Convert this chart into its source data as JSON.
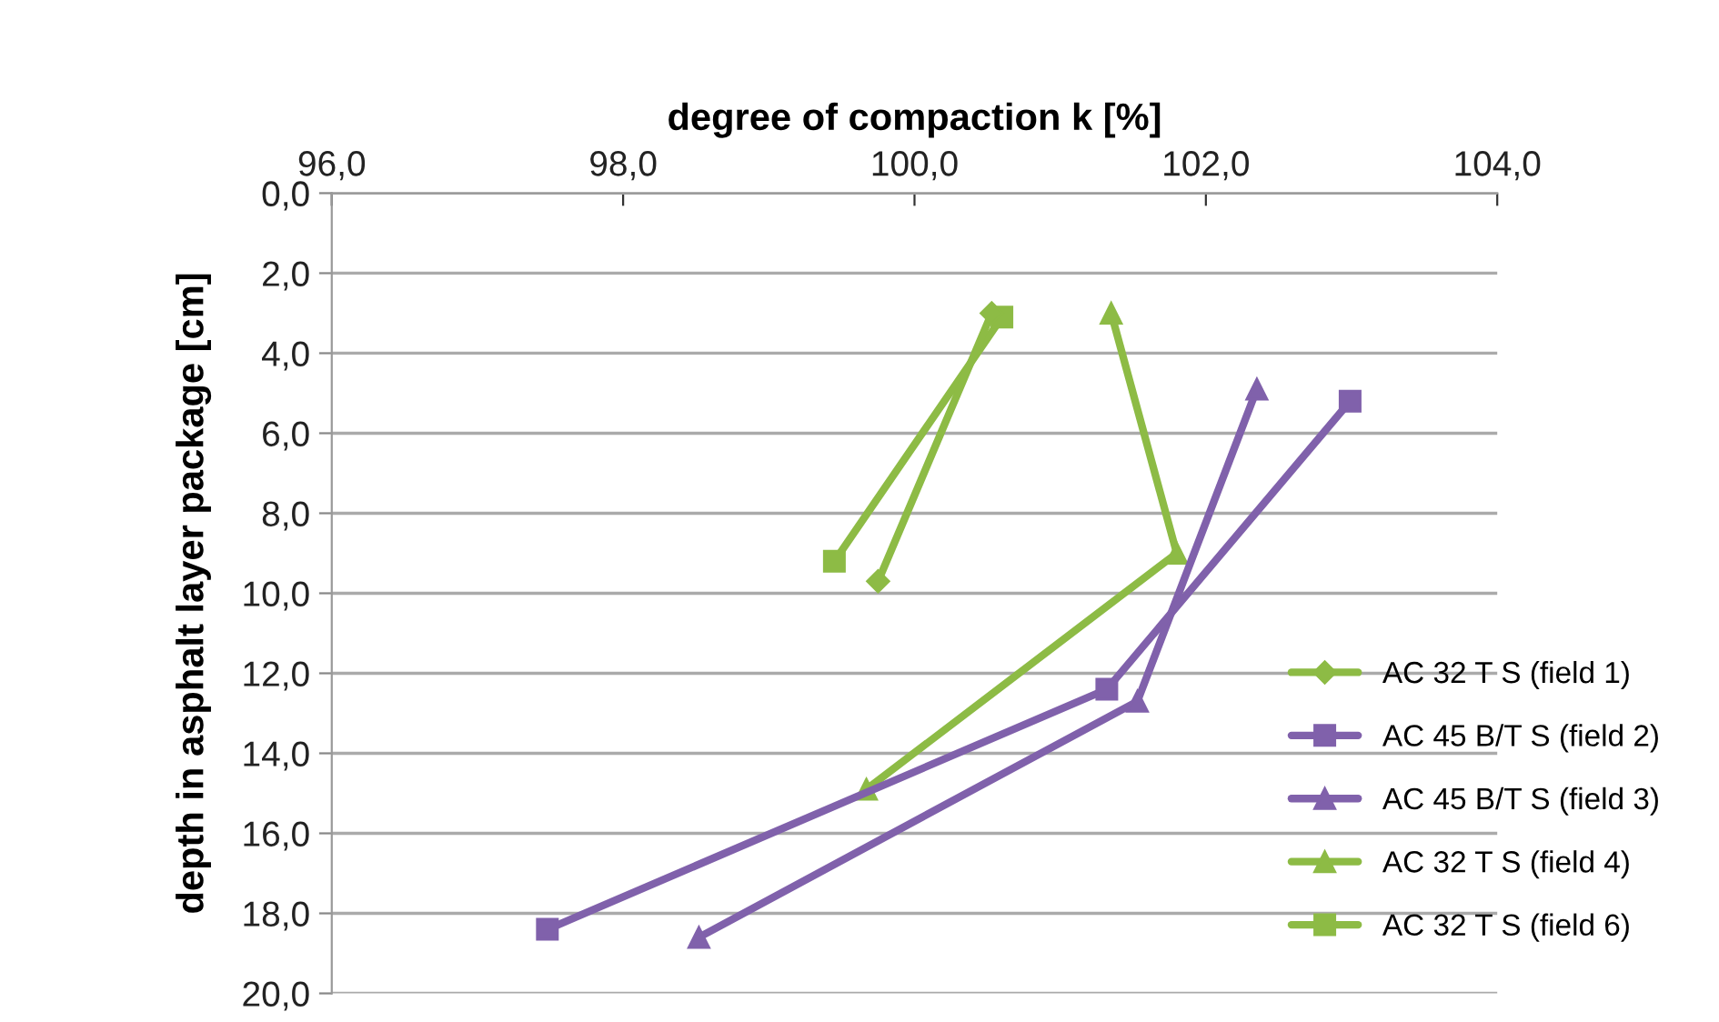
{
  "chart_data": {
    "type": "line",
    "xlabel": "degree of compaction k [%]",
    "ylabel": "depth in asphalt layer package [cm]",
    "xlim": [
      96,
      104
    ],
    "xticks": [
      {
        "value": 96,
        "label": "96,0"
      },
      {
        "value": 98,
        "label": "98,0"
      },
      {
        "value": 100,
        "label": "100,0"
      },
      {
        "value": 102,
        "label": "102,0"
      },
      {
        "value": 104,
        "label": "104,0"
      }
    ],
    "ylim": [
      20,
      0
    ],
    "yticks": [
      {
        "value": 0,
        "label": "0,0"
      },
      {
        "value": 2,
        "label": "2,0"
      },
      {
        "value": 4,
        "label": "4,0"
      },
      {
        "value": 6,
        "label": "6,0"
      },
      {
        "value": 8,
        "label": "8,0"
      },
      {
        "value": 10,
        "label": "10,0"
      },
      {
        "value": 12,
        "label": "12,0"
      },
      {
        "value": 14,
        "label": "14,0"
      },
      {
        "value": 16,
        "label": "16,0"
      },
      {
        "value": 18,
        "label": "18,0"
      },
      {
        "value": 20,
        "label": "20,0"
      }
    ],
    "grid": "y",
    "legend": "right",
    "line_style": "solid",
    "series": [
      {
        "name": "AC 32 T S (field 1)",
        "color": "#8dbb45",
        "marker": "diamond",
        "x": [
          100.53,
          99.75
        ],
        "values": [
          3.0,
          9.7
        ]
      },
      {
        "name": "AC 45 B/T S (field 2)",
        "color": "#8061ab",
        "marker": "square",
        "x": [
          102.99,
          101.32,
          97.48
        ],
        "values": [
          5.2,
          12.4,
          18.4
        ]
      },
      {
        "name": "AC 45 B/T S (field 3)",
        "color": "#8061ab",
        "marker": "triangle",
        "x": [
          102.35,
          101.53,
          98.52
        ],
        "values": [
          4.9,
          12.7,
          18.6
        ]
      },
      {
        "name": "AC 32 T S (field 4)",
        "color": "#8dbb45",
        "marker": "triangle",
        "x": [
          101.35,
          101.8,
          99.67
        ],
        "values": [
          3.0,
          9.0,
          14.9
        ]
      },
      {
        "name": "AC 32 T S (field 6)",
        "color": "#8dbb45",
        "marker": "square",
        "x": [
          100.6,
          99.45
        ],
        "values": [
          3.1,
          9.2
        ]
      }
    ]
  }
}
